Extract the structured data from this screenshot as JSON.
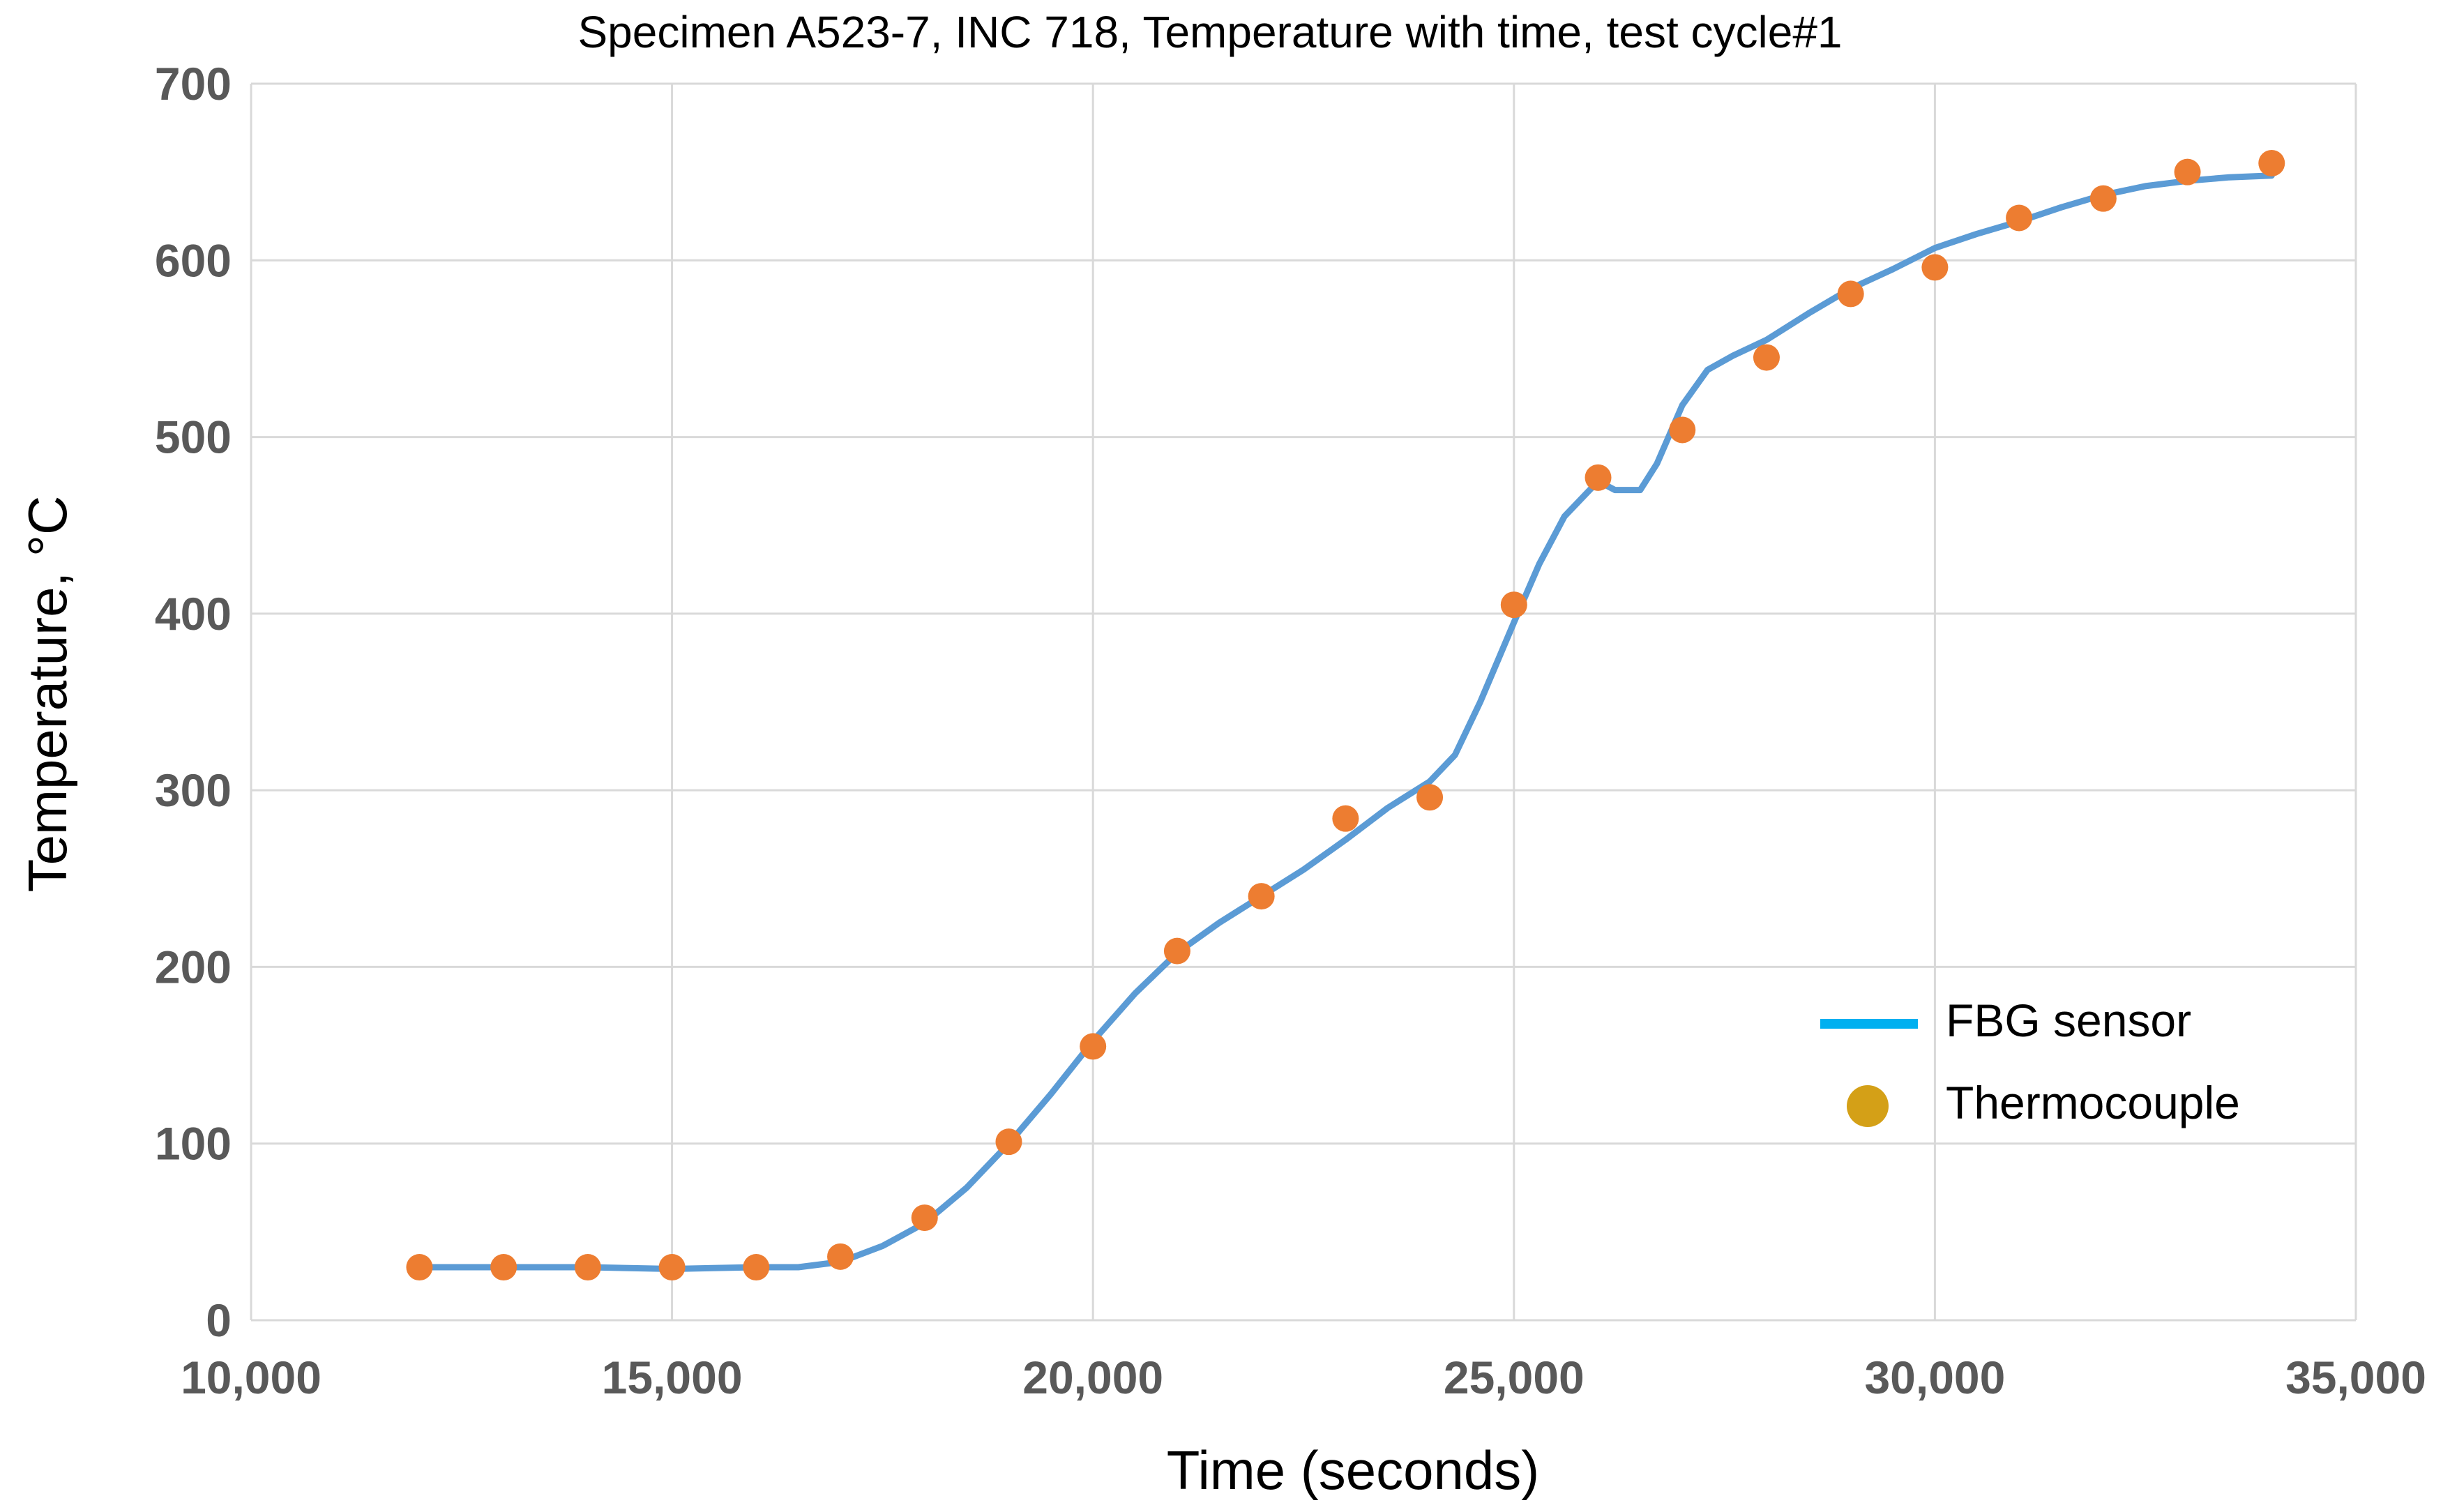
{
  "chart_data": {
    "type": "line",
    "title": "Specimen A523-7, INC 718, Temperature with time, test cycle#1",
    "xlabel": "Time (seconds)",
    "ylabel": "Temperature,  °C",
    "xlim": [
      10000,
      35000
    ],
    "ylim": [
      0,
      700
    ],
    "x_ticks": [
      10000,
      15000,
      20000,
      25000,
      30000,
      35000
    ],
    "x_tick_labels": [
      "10,000",
      "15,000",
      "20,000",
      "25,000",
      "30,000",
      "35,000"
    ],
    "y_ticks": [
      0,
      100,
      200,
      300,
      400,
      500,
      600,
      700
    ],
    "y_tick_labels": [
      "0",
      "100",
      "200",
      "300",
      "400",
      "500",
      "600",
      "700"
    ],
    "grid": true,
    "legend_position": "lower-right",
    "series": [
      {
        "name": "FBG sensor",
        "kind": "line",
        "color": "#5b9bd5",
        "legend_color": "#00b0f0",
        "x": [
          12000,
          13000,
          14000,
          15000,
          16000,
          16500,
          17000,
          17500,
          18000,
          18500,
          19000,
          19500,
          20000,
          20500,
          21000,
          21500,
          22000,
          22500,
          23000,
          23500,
          24000,
          24300,
          24600,
          25000,
          25300,
          25600,
          26000,
          26200,
          26500,
          26700,
          27000,
          27300,
          27600,
          28000,
          28500,
          29000,
          29500,
          30000,
          30500,
          31000,
          31500,
          32000,
          32500,
          33000,
          33500,
          34000
        ],
        "y": [
          30,
          30,
          30,
          29,
          30,
          30,
          33,
          42,
          55,
          75,
          100,
          128,
          158,
          185,
          208,
          225,
          240,
          255,
          272,
          290,
          305,
          320,
          350,
          395,
          428,
          455,
          475,
          470,
          470,
          485,
          518,
          538,
          546,
          555,
          570,
          584,
          595,
          607,
          615,
          622,
          630,
          637,
          642,
          645,
          647,
          648
        ]
      },
      {
        "name": "Thermocouple",
        "kind": "scatter",
        "color": "#ed7d31",
        "legend_color": "#d4a017",
        "x": [
          12000,
          13000,
          14000,
          15000,
          16000,
          17000,
          18000,
          19000,
          20000,
          21000,
          22000,
          23000,
          24000,
          25000,
          26000,
          27000,
          28000,
          29000,
          30000,
          31000,
          32000,
          33000,
          34000
        ],
        "y": [
          30,
          30,
          30,
          30,
          30,
          36,
          58,
          101,
          155,
          209,
          240,
          284,
          296,
          405,
          477,
          504,
          545,
          581,
          596,
          624,
          635,
          650,
          655
        ]
      }
    ]
  }
}
